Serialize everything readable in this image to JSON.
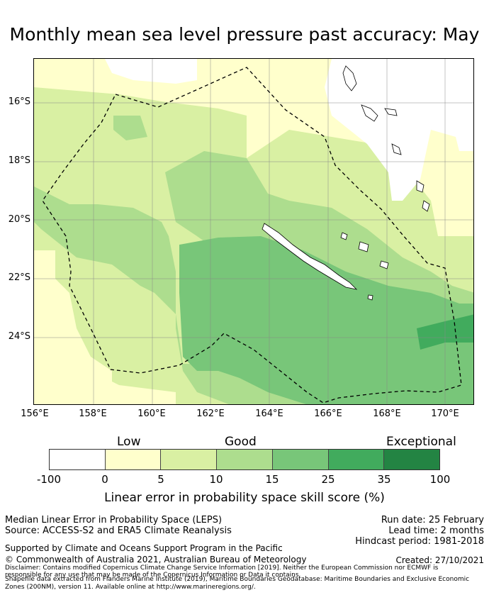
{
  "title": "Monthly mean sea level pressure past accuracy: May",
  "map": {
    "latitude_labels": [
      "16°S",
      "18°S",
      "20°S",
      "22°S",
      "24°S"
    ],
    "longitude_labels": [
      "156°E",
      "158°E",
      "160°E",
      "162°E",
      "164°E",
      "166°E",
      "168°E",
      "170°E"
    ],
    "colors": {
      "none": "#ffffff",
      "low": "#ffffcc",
      "fair": "#d9f0a3",
      "good": "#addd8e",
      "very_good": "#78c679",
      "excellent": "#41ab5d",
      "exceptional": "#238443"
    }
  },
  "legend": {
    "categories": [
      "Low",
      "Good",
      "Exceptional"
    ],
    "ticks": [
      "-100",
      "0",
      "5",
      "10",
      "15",
      "25",
      "35",
      "100"
    ],
    "colors": [
      "#ffffff",
      "#ffffcc",
      "#d9f0a3",
      "#addd8e",
      "#78c679",
      "#41ab5d",
      "#238443"
    ],
    "label": "Linear error in probability space skill score (%)"
  },
  "footer": {
    "method": "Median Linear Error in Probability Space (LEPS)",
    "source": "Source: ACCESS-S2 and ERA5 Climate Reanalysis",
    "run_date": "Run date: 25 February",
    "lead_time": "Lead time: 2 months",
    "hindcast": "Hindcast period: 1981-2018",
    "support": "Supported by Climate and Oceans Support Program in the Pacific",
    "copyright": "© Commonwealth of Australia 2021, Australian Bureau of Meteorology",
    "created": "Created: 27/10/2021",
    "disclaimer1": "Disclaimer: Contains modified Copernicus Climate Change Service Information [2019]. Neither the European Commission nor ECMWF is",
    "disclaimer2": "responsible for any use that may be made of the Copernicus Information or Data it contains.",
    "shapefile1": "Shapefile data extracted from Flanders Marine Institute (2019), Maritime Boundaries Geodatabase: Maritime Boundaries and Exclusive Economic",
    "shapefile2": "Zones (200NM), version 11. Available online at http://www.marineregions.org/."
  }
}
